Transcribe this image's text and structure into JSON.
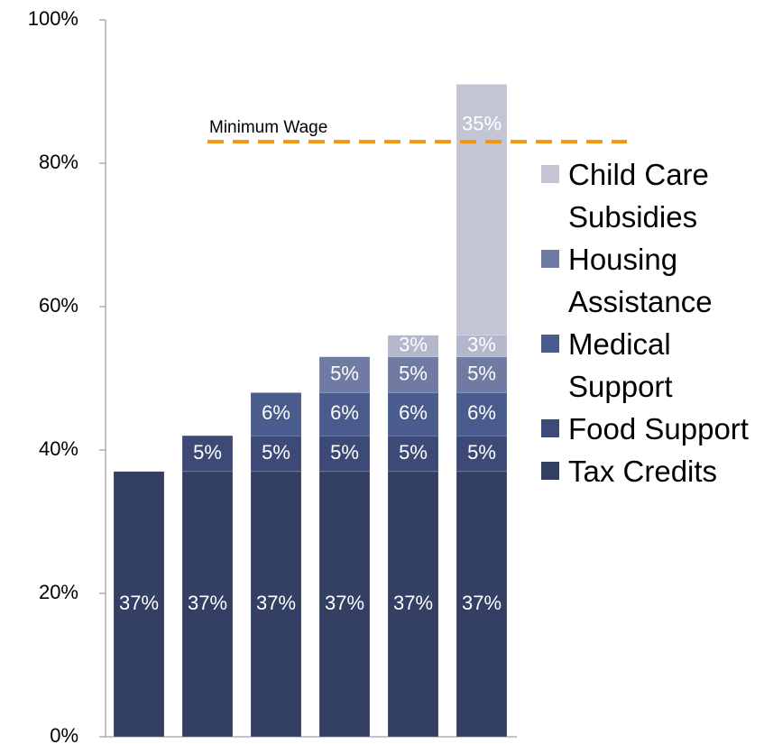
{
  "chart_data": {
    "type": "stacked_bar",
    "categories": [
      null,
      null,
      null,
      null,
      null,
      null
    ],
    "series": [
      {
        "name": "Tax Credits",
        "color": "#333f63",
        "values": [
          37,
          37,
          37,
          37,
          37,
          37
        ],
        "value_labels": [
          "37%",
          "37%",
          "37%",
          "37%",
          "37%",
          "37%"
        ]
      },
      {
        "name": "Food Support",
        "color": "#3d4a78",
        "values": [
          null,
          5,
          5,
          5,
          5,
          5
        ],
        "value_labels": [
          null,
          "5%",
          "5%",
          "5%",
          "5%",
          "5%"
        ]
      },
      {
        "name": "Medical Support",
        "color": "#4a5b8e",
        "values": [
          null,
          null,
          6,
          6,
          6,
          6
        ],
        "value_labels": [
          null,
          null,
          "6%",
          "6%",
          "6%",
          "6%"
        ]
      },
      {
        "name": "Housing Assistance",
        "color": "#6f7ba2",
        "values": [
          null,
          null,
          null,
          5,
          5,
          5
        ],
        "value_labels": [
          null,
          null,
          null,
          "5%",
          "5%",
          "5%"
        ]
      },
      {
        "color": "#b3b7cc",
        "values": [
          null,
          null,
          null,
          null,
          3,
          3
        ],
        "value_labels": [
          null,
          null,
          null,
          null,
          "3%",
          "3%"
        ]
      },
      {
        "name": "Child Care Subsidies",
        "color": "#c3c5d5",
        "values": [
          null,
          null,
          null,
          null,
          null,
          35
        ],
        "value_labels": [
          null,
          null,
          null,
          null,
          null,
          "35%"
        ]
      }
    ],
    "ylim": [
      0,
      100
    ],
    "yticks": [
      {
        "value": 0,
        "label": "0%"
      },
      {
        "value": 20,
        "label": "20%"
      },
      {
        "value": 40,
        "label": "40%"
      },
      {
        "value": 60,
        "label": "60%"
      },
      {
        "value": 80,
        "label": "80%"
      },
      {
        "value": 100,
        "label": "100%"
      }
    ],
    "reference_line": {
      "label": "Minimum Wage",
      "value": 83,
      "color": "#f0960f"
    },
    "legend": "right"
  }
}
